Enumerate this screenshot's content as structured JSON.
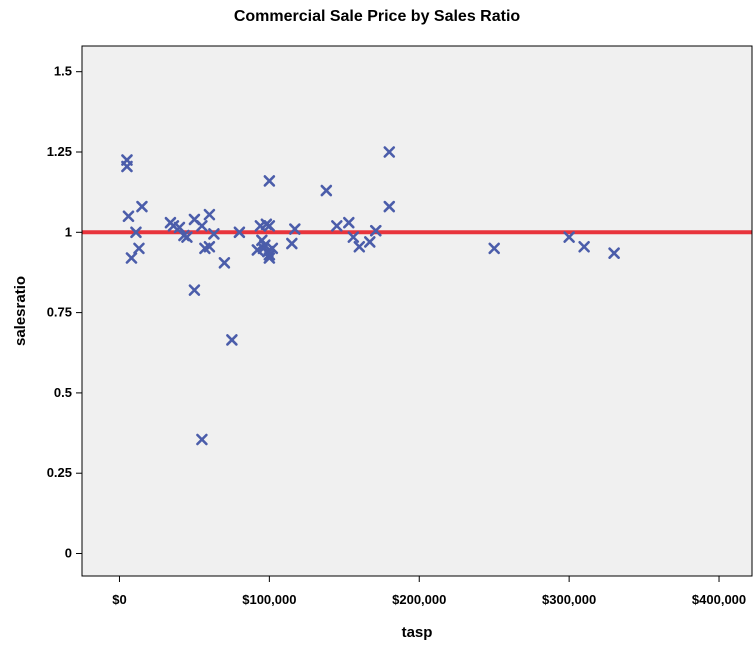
{
  "chart_data": {
    "type": "scatter",
    "title": "Commercial Sale Price by Sales Ratio",
    "xlabel": "tasp",
    "ylabel": "salesratio",
    "xlim": [
      -25000,
      422000
    ],
    "ylim": [
      -0.07,
      1.58
    ],
    "x_ticks": [
      0,
      100000,
      200000,
      300000,
      400000
    ],
    "x_tick_labels": [
      "$0",
      "$100,000",
      "$200,000",
      "$300,000",
      "$400,000"
    ],
    "y_ticks": [
      0,
      0.25,
      0.5,
      0.75,
      1,
      1.25,
      1.5
    ],
    "y_tick_labels": [
      "0",
      "0.25",
      "0.5",
      "0.75",
      "1",
      "1.25",
      "1.5"
    ],
    "grid": false,
    "background_color": "#f0f0f0",
    "marker_color": "#4b5daa",
    "reference_line": {
      "y": 1,
      "color": "#e8343c"
    },
    "points": [
      {
        "x": 5000,
        "y": 1.225
      },
      {
        "x": 5000,
        "y": 1.205
      },
      {
        "x": 6000,
        "y": 1.05
      },
      {
        "x": 8000,
        "y": 0.92
      },
      {
        "x": 11000,
        "y": 1.0
      },
      {
        "x": 13000,
        "y": 0.95
      },
      {
        "x": 15000,
        "y": 1.08
      },
      {
        "x": 34000,
        "y": 1.03
      },
      {
        "x": 36000,
        "y": 1.02
      },
      {
        "x": 40000,
        "y": 1.015
      },
      {
        "x": 43000,
        "y": 0.99
      },
      {
        "x": 45000,
        "y": 0.985
      },
      {
        "x": 50000,
        "y": 1.04
      },
      {
        "x": 50000,
        "y": 0.82
      },
      {
        "x": 55000,
        "y": 1.02
      },
      {
        "x": 55000,
        "y": 0.355
      },
      {
        "x": 57000,
        "y": 0.95
      },
      {
        "x": 60000,
        "y": 0.955
      },
      {
        "x": 60000,
        "y": 1.055
      },
      {
        "x": 63000,
        "y": 0.995
      },
      {
        "x": 70000,
        "y": 0.905
      },
      {
        "x": 75000,
        "y": 0.665
      },
      {
        "x": 80000,
        "y": 1.0
      },
      {
        "x": 92000,
        "y": 0.945
      },
      {
        "x": 94000,
        "y": 1.02
      },
      {
        "x": 95000,
        "y": 0.975
      },
      {
        "x": 96000,
        "y": 0.95
      },
      {
        "x": 97000,
        "y": 0.96
      },
      {
        "x": 98000,
        "y": 1.025
      },
      {
        "x": 99000,
        "y": 0.94
      },
      {
        "x": 100000,
        "y": 1.16
      },
      {
        "x": 100000,
        "y": 1.02
      },
      {
        "x": 100000,
        "y": 0.93
      },
      {
        "x": 100000,
        "y": 0.92
      },
      {
        "x": 102000,
        "y": 0.95
      },
      {
        "x": 115000,
        "y": 0.965
      },
      {
        "x": 117000,
        "y": 1.01
      },
      {
        "x": 138000,
        "y": 1.13
      },
      {
        "x": 145000,
        "y": 1.02
      },
      {
        "x": 153000,
        "y": 1.03
      },
      {
        "x": 156000,
        "y": 0.985
      },
      {
        "x": 160000,
        "y": 0.955
      },
      {
        "x": 167000,
        "y": 0.97
      },
      {
        "x": 171000,
        "y": 1.005
      },
      {
        "x": 180000,
        "y": 1.25
      },
      {
        "x": 180000,
        "y": 1.08
      },
      {
        "x": 250000,
        "y": 0.95
      },
      {
        "x": 300000,
        "y": 0.985
      },
      {
        "x": 310000,
        "y": 0.955
      },
      {
        "x": 330000,
        "y": 0.935
      }
    ]
  }
}
